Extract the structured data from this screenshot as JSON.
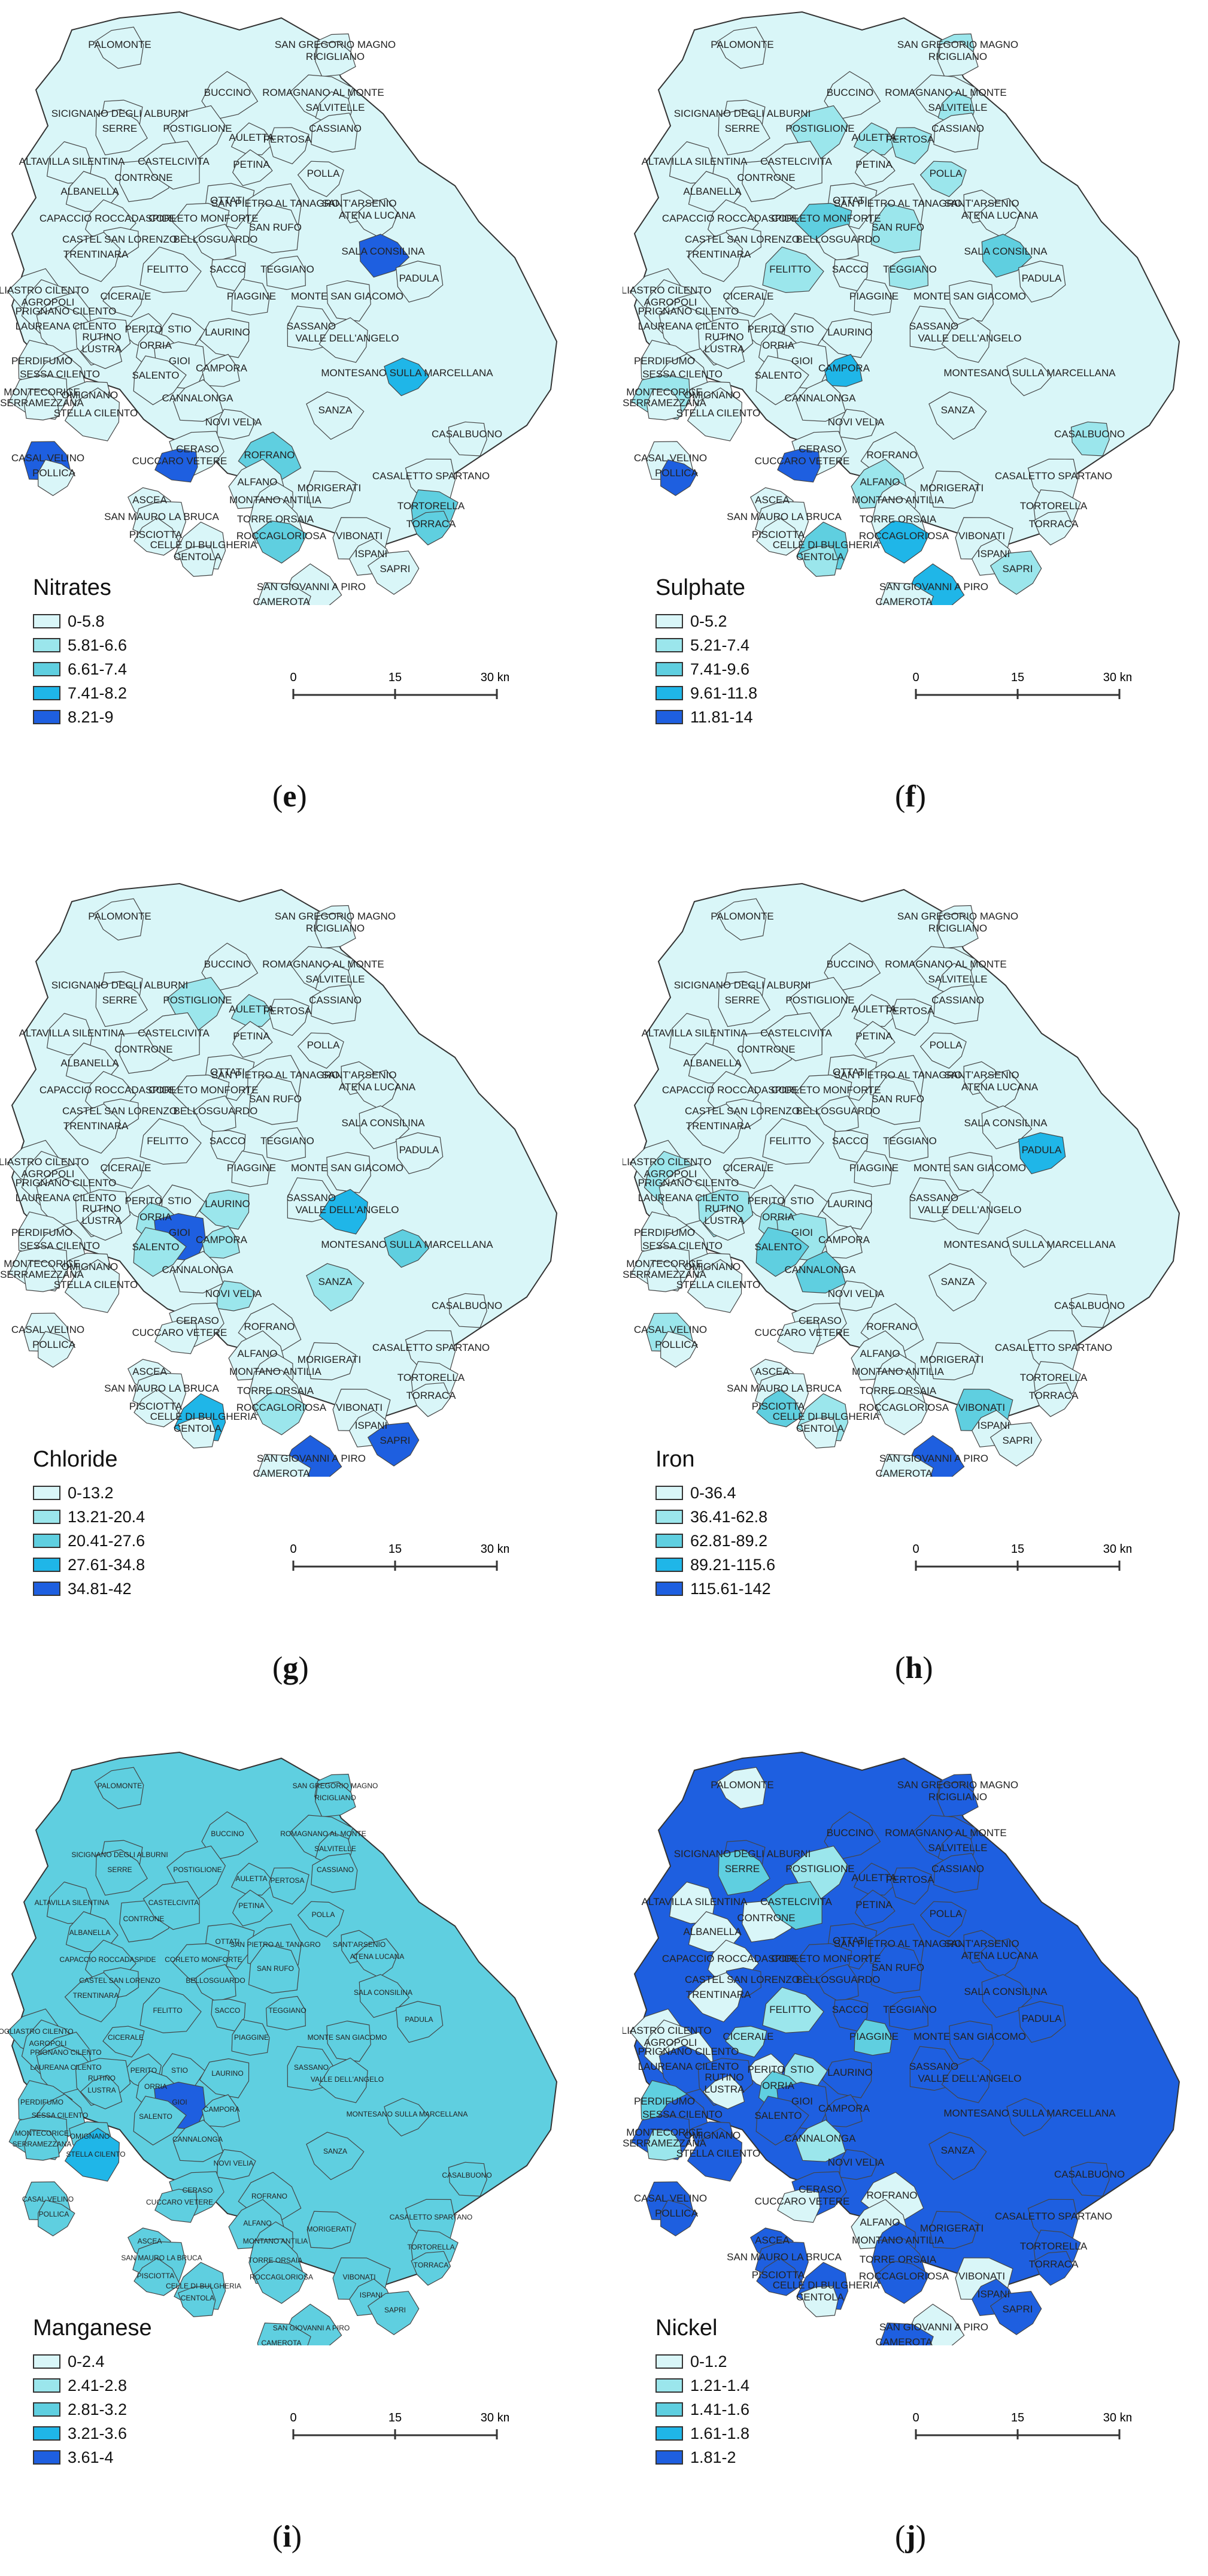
{
  "common": {
    "places": [
      {
        "name": "SAN GREGORIO MAGNO",
        "tier": "a"
      },
      {
        "name": "RICIGLIANO",
        "tier": "a"
      },
      {
        "name": "PALOMONTE",
        "tier": "a"
      },
      {
        "name": "BUCCINO",
        "tier": "a"
      },
      {
        "name": "ROMAGNANO AL MONTE",
        "tier": "a"
      },
      {
        "name": "SALVITELLE",
        "tier": "a"
      },
      {
        "name": "SICIGNANO DEGLI ALBURNI",
        "tier": "a"
      },
      {
        "name": "CASSIANO",
        "tier": "a"
      },
      {
        "name": "SERRE",
        "tier": "a"
      },
      {
        "name": "POSTIGLIONE",
        "tier": "a"
      },
      {
        "name": "AULETTA",
        "tier": "a"
      },
      {
        "name": "PERTOSA",
        "tier": "a"
      },
      {
        "name": "ALTAVILLA SILENTINA",
        "tier": "a"
      },
      {
        "name": "CONTRONE",
        "tier": "a"
      },
      {
        "name": "CASTELCIVITA",
        "tier": "a"
      },
      {
        "name": "PETINA",
        "tier": "a"
      },
      {
        "name": "POLLA",
        "tier": "a"
      },
      {
        "name": "ALBANELLA",
        "tier": "a"
      },
      {
        "name": "OTTATI",
        "tier": "a"
      },
      {
        "name": "SAN PIETRO AL TANAGRO",
        "tier": "a"
      },
      {
        "name": "SANT'ARSENIO",
        "tier": "a"
      },
      {
        "name": "ATENA LUCANA",
        "tier": "a"
      },
      {
        "name": "CAPACCIO ROCCADASPIDE",
        "tier": "a"
      },
      {
        "name": "CORLETO MONFORTE",
        "tier": "a"
      },
      {
        "name": "SAN RUFO",
        "tier": "a"
      },
      {
        "name": "CASTEL SAN LORENZO",
        "tier": "a"
      },
      {
        "name": "BELLOSGUARDO",
        "tier": "a"
      },
      {
        "name": "SALA CONSILINA",
        "tier": "a"
      },
      {
        "name": "TRENTINARA",
        "tier": "a"
      },
      {
        "name": "FELITTO",
        "tier": "a"
      },
      {
        "name": "SACCO",
        "tier": "a"
      },
      {
        "name": "TEGGIANO",
        "tier": "a"
      },
      {
        "name": "PADULA",
        "tier": "a"
      },
      {
        "name": "OGLIASTRO CILENTO",
        "tier": "a"
      },
      {
        "name": "AGROPOLI",
        "tier": "a"
      },
      {
        "name": "CICERALE",
        "tier": "a"
      },
      {
        "name": "PIAGGINE",
        "tier": "a"
      },
      {
        "name": "MONTE SAN GIACOMO",
        "tier": "a"
      },
      {
        "name": "PRIGNANO CILENTO",
        "tier": "a"
      },
      {
        "name": "LAUREANA CILENTO",
        "tier": "a"
      },
      {
        "name": "PERITO",
        "tier": "a"
      },
      {
        "name": "STIO",
        "tier": "a"
      },
      {
        "name": "LAURINO",
        "tier": "a"
      },
      {
        "name": "SASSANO",
        "tier": "a"
      },
      {
        "name": "RUTINO",
        "tier": "a"
      },
      {
        "name": "LUSTRA",
        "tier": "a"
      },
      {
        "name": "ORRIA",
        "tier": "a"
      },
      {
        "name": "VALLE DELL'ANGELO",
        "tier": "a"
      },
      {
        "name": "PERDIFUMO",
        "tier": "a"
      },
      {
        "name": "GIOI",
        "tier": "a"
      },
      {
        "name": "CAMPORA",
        "tier": "a"
      },
      {
        "name": "MONTESANO SULLA MARCELLANA",
        "tier": "a"
      },
      {
        "name": "SESSA CILENTO",
        "tier": "a"
      },
      {
        "name": "SALENTO",
        "tier": "a"
      },
      {
        "name": "MONTECORICE",
        "tier": "a"
      },
      {
        "name": "SERRAMEZZANA",
        "tier": "a"
      },
      {
        "name": "OMIGNANO",
        "tier": "a"
      },
      {
        "name": "CANNALONGA",
        "tier": "a"
      },
      {
        "name": "SANZA",
        "tier": "a"
      },
      {
        "name": "STELLA CILENTO",
        "tier": "a"
      },
      {
        "name": "NOVI VELIA",
        "tier": "a"
      },
      {
        "name": "CASALBUONO",
        "tier": "a"
      },
      {
        "name": "CASAL VELINO",
        "tier": "a"
      },
      {
        "name": "CERASO",
        "tier": "a"
      },
      {
        "name": "ROFRANO",
        "tier": "a"
      },
      {
        "name": "POLLICA",
        "tier": "a"
      },
      {
        "name": "CUCCARO VETERE",
        "tier": "a"
      },
      {
        "name": "MORIGERATI",
        "tier": "a"
      },
      {
        "name": "CASALETTO SPARTANO",
        "tier": "a"
      },
      {
        "name": "ALFANO",
        "tier": "a"
      },
      {
        "name": "ASCEA",
        "tier": "a"
      },
      {
        "name": "MONTANO ANTILIA",
        "tier": "a"
      },
      {
        "name": "TORTORELLA",
        "tier": "a"
      },
      {
        "name": "SAN MAURO LA BRUCA",
        "tier": "a"
      },
      {
        "name": "TORRE ORSAIA",
        "tier": "a"
      },
      {
        "name": "TORRACA",
        "tier": "a"
      },
      {
        "name": "PISCIOTTA",
        "tier": "a"
      },
      {
        "name": "ROCCAGLORIOSA",
        "tier": "a"
      },
      {
        "name": "CELLE DI BULGHERIA",
        "tier": "a"
      },
      {
        "name": "VIBONATI",
        "tier": "a"
      },
      {
        "name": "CENTOLA",
        "tier": "a"
      },
      {
        "name": "ISPANI",
        "tier": "a"
      },
      {
        "name": "SAPRI",
        "tier": "a"
      },
      {
        "name": "SAN GIOVANNI A PIRO",
        "tier": "a"
      },
      {
        "name": "CAMEROTA",
        "tier": "a"
      }
    ],
    "scale_labels": [
      "0",
      "15",
      "30 km"
    ]
  },
  "panels": [
    {
      "id": "e",
      "label": "e",
      "title": "Nitrates",
      "classes": [
        "0-5.8",
        "5.81-6.6",
        "6.61-7.4",
        "7.41-8.2",
        "8.21-9"
      ],
      "colors": [
        "#d9f6f8",
        "#9be6ec",
        "#5fcfe0",
        "#1fb6e8",
        "#1e5fe0"
      ]
    },
    {
      "id": "f",
      "label": "f",
      "title": "Sulphate",
      "classes": [
        "0-5.2",
        "5.21-7.4",
        "7.41-9.6",
        "9.61-11.8",
        "11.81-14"
      ],
      "colors": [
        "#d9f6f8",
        "#9be6ec",
        "#5fcfe0",
        "#1fb6e8",
        "#1e5fe0"
      ]
    },
    {
      "id": "g",
      "label": "g",
      "title": "Chloride",
      "classes": [
        "0-13.2",
        "13.21-20.4",
        "20.41-27.6",
        "27.61-34.8",
        "34.81-42"
      ],
      "colors": [
        "#d9f6f8",
        "#9be6ec",
        "#5fcfe0",
        "#1fb6e8",
        "#1e5fe0"
      ]
    },
    {
      "id": "h",
      "label": "h",
      "title": "Iron",
      "classes": [
        "0-36.4",
        "36.41-62.8",
        "62.81-89.2",
        "89.21-115.6",
        "115.61-142"
      ],
      "colors": [
        "#d9f6f8",
        "#9be6ec",
        "#5fcfe0",
        "#1fb6e8",
        "#1e5fe0"
      ]
    },
    {
      "id": "i",
      "label": "i",
      "title": "Manganese",
      "classes": [
        "0-2.4",
        "2.41-2.8",
        "2.81-3.2",
        "3.21-3.6",
        "3.61-4"
      ],
      "colors": [
        "#d9f6f8",
        "#9be6ec",
        "#5fcfe0",
        "#1fb6e8",
        "#1e5fe0"
      ]
    },
    {
      "id": "j",
      "label": "j",
      "title": "Nickel",
      "classes": [
        "0-1.2",
        "1.21-1.4",
        "1.41-1.6",
        "1.61-1.8",
        "1.81-2"
      ],
      "colors": [
        "#d9f6f8",
        "#9be6ec",
        "#5fcfe0",
        "#1fb6e8",
        "#1e5fe0"
      ]
    }
  ]
}
